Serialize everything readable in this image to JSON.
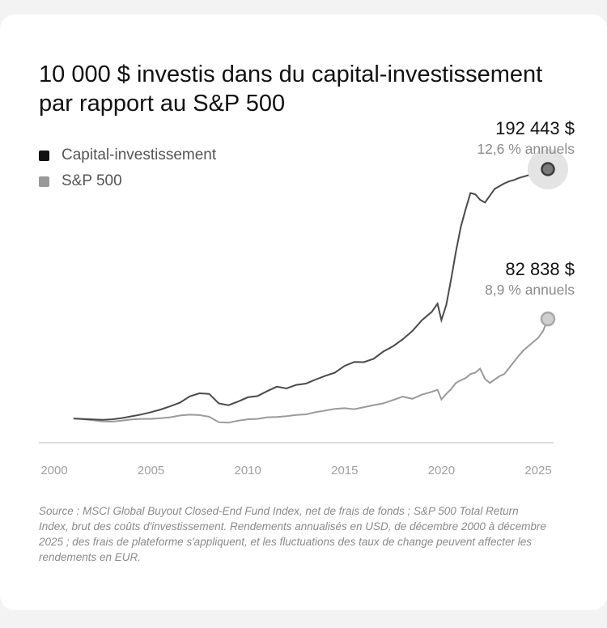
{
  "title": "10 000 $ investis dans du capital-investissement par rapport au S&P 500",
  "colors": {
    "pe": "#111111",
    "sp": "#999999",
    "pe_line": "#4a4a4a",
    "sp_line": "#9a9a9a"
  },
  "legend": [
    {
      "label": "Capital-investissement",
      "color": "#111111"
    },
    {
      "label": "S&P 500",
      "color": "#999999"
    }
  ],
  "annotations": {
    "pe": {
      "value": "192 443 $",
      "rate": "12,6 % annuels"
    },
    "sp": {
      "value": "82 838 $",
      "rate": "8,9 % annuels"
    }
  },
  "source": "Source : MSCI Global Buyout Closed-End Fund Index, net de frais de fonds ; S&P 500 Total Return Index, brut des coûts d'investissement. Rendements annualisés en USD, de décembre 2000 à décembre 2025 ; des frais de plateforme s'appliquent, et les fluctuations des taux de change peuvent affecter les rendements en EUR.",
  "chart_data": {
    "type": "line",
    "xlim": [
      2000,
      2025.8
    ],
    "ylim": [
      0,
      200000
    ],
    "xticks": [
      "2000",
      "2005",
      "2010",
      "2015",
      "2020",
      "2025"
    ],
    "grid": false,
    "legend_position": "top-left",
    "series": [
      {
        "name": "Capital-investissement",
        "x": [
          2001.0,
          2001.5,
          2002.0,
          2002.5,
          2003.0,
          2003.5,
          2004.0,
          2004.5,
          2005.0,
          2005.5,
          2006.0,
          2006.5,
          2007.0,
          2007.5,
          2008.0,
          2008.5,
          2009.0,
          2009.5,
          2010.0,
          2010.5,
          2011.0,
          2011.5,
          2012.0,
          2012.5,
          2013.0,
          2013.5,
          2014.0,
          2014.5,
          2015.0,
          2015.5,
          2016.0,
          2016.5,
          2017.0,
          2017.5,
          2018.0,
          2018.5,
          2019.0,
          2019.5,
          2019.8,
          2020.0,
          2020.25,
          2020.5,
          2020.75,
          2021.0,
          2021.25,
          2021.5,
          2021.75,
          2022.0,
          2022.25,
          2022.5,
          2022.75,
          2023.0,
          2023.25,
          2023.5,
          2023.75,
          2024.0,
          2024.25,
          2024.5,
          2024.75,
          2025.0,
          2025.25,
          2025.5
        ],
        "values": [
          10000,
          9600,
          9300,
          9000,
          9400,
          10300,
          11600,
          12900,
          14600,
          16600,
          19000,
          21600,
          26200,
          28400,
          28000,
          21000,
          19700,
          22400,
          25500,
          26400,
          30000,
          33300,
          32000,
          34600,
          35500,
          38500,
          41200,
          43500,
          48500,
          51400,
          51200,
          53700,
          59000,
          62800,
          68000,
          74000,
          82000,
          88000,
          94000,
          82000,
          93000,
          112000,
          132000,
          150000,
          163000,
          175000,
          174000,
          170000,
          168000,
          173000,
          178000,
          180000,
          182000,
          183500,
          184500,
          186000,
          187000,
          188000,
          189500,
          190800,
          191800,
          192443
        ]
      },
      {
        "name": "S&P 500",
        "x": [
          2001.0,
          2001.5,
          2002.0,
          2002.5,
          2003.0,
          2003.5,
          2004.0,
          2004.5,
          2005.0,
          2005.5,
          2006.0,
          2006.5,
          2007.0,
          2007.5,
          2008.0,
          2008.5,
          2009.0,
          2009.5,
          2010.0,
          2010.5,
          2011.0,
          2011.5,
          2012.0,
          2012.5,
          2013.0,
          2013.5,
          2014.0,
          2014.5,
          2015.0,
          2015.5,
          2016.0,
          2016.5,
          2017.0,
          2017.5,
          2018.0,
          2018.5,
          2019.0,
          2019.5,
          2019.8,
          2020.0,
          2020.25,
          2020.5,
          2020.75,
          2021.0,
          2021.25,
          2021.5,
          2021.75,
          2022.0,
          2022.25,
          2022.5,
          2022.75,
          2023.0,
          2023.25,
          2023.5,
          2023.75,
          2024.0,
          2024.25,
          2024.5,
          2024.75,
          2025.0,
          2025.25,
          2025.5
        ],
        "values": [
          10000,
          9500,
          8700,
          7800,
          7700,
          8400,
          9300,
          9700,
          9700,
          10200,
          10900,
          12200,
          12800,
          12500,
          11300,
          7300,
          6900,
          8400,
          9400,
          9700,
          10900,
          11100,
          11700,
          12600,
          13000,
          14600,
          15800,
          17000,
          17500,
          16800,
          18300,
          19800,
          21100,
          23500,
          26000,
          24400,
          27500,
          29500,
          31000,
          24000,
          28000,
          31500,
          36000,
          38000,
          39500,
          42500,
          43500,
          46500,
          39000,
          36000,
          38500,
          41000,
          42500,
          47000,
          51500,
          56000,
          60000,
          63000,
          66000,
          69000,
          74000,
          82838
        ]
      }
    ]
  }
}
